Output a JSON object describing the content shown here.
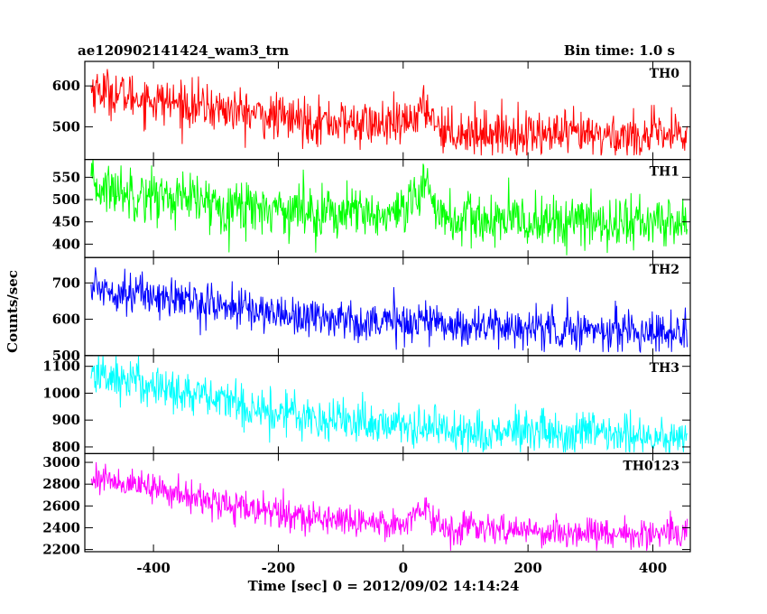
{
  "header": {
    "left_title": "ae120902141424_wam3_trn",
    "right_title": "Bin time: 1.0 s"
  },
  "chart_data": {
    "type": "line",
    "xlabel": "Time [sec] 0 = 2012/09/02 14:14:24",
    "ylabel": "Counts/sec",
    "xlim": [
      -510,
      460
    ],
    "x_ticks": [
      -400,
      -200,
      0,
      200,
      400
    ],
    "x_step": 1.0,
    "x_range": [
      -500,
      455
    ],
    "grid": false,
    "panels": [
      {
        "name": "TH0",
        "color": "#ff0000",
        "ylim": [
          420,
          660
        ],
        "y_ticks": [
          500,
          600
        ],
        "trend_points": [
          [
            -500,
            595
          ],
          [
            -450,
            578
          ],
          [
            -400,
            565
          ],
          [
            -300,
            545
          ],
          [
            -200,
            522
          ],
          [
            -100,
            510
          ],
          [
            0,
            502
          ],
          [
            20,
            530
          ],
          [
            40,
            548
          ],
          [
            55,
            505
          ],
          [
            70,
            488
          ],
          [
            200,
            483
          ],
          [
            300,
            478
          ],
          [
            455,
            478
          ]
        ],
        "noise": 28,
        "y_range": [
          430,
          660
        ]
      },
      {
        "name": "TH1",
        "color": "#00ff00",
        "ylim": [
          370,
          590
        ],
        "y_ticks": [
          400,
          450,
          500,
          550
        ],
        "trend_points": [
          [
            -500,
            530
          ],
          [
            -400,
            510
          ],
          [
            -300,
            490
          ],
          [
            -200,
            480
          ],
          [
            -100,
            470
          ],
          [
            0,
            460
          ],
          [
            25,
            505
          ],
          [
            40,
            545
          ],
          [
            55,
            475
          ],
          [
            70,
            455
          ],
          [
            200,
            450
          ],
          [
            455,
            448
          ]
        ],
        "noise": 30,
        "y_range": [
          375,
          595
        ]
      },
      {
        "name": "TH2",
        "color": "#0000ff",
        "ylim": [
          500,
          770
        ],
        "y_ticks": [
          500,
          600,
          700
        ],
        "trend_points": [
          [
            -500,
            690
          ],
          [
            -400,
            665
          ],
          [
            -300,
            640
          ],
          [
            -200,
            615
          ],
          [
            -100,
            600
          ],
          [
            0,
            590
          ],
          [
            40,
            600
          ],
          [
            70,
            585
          ],
          [
            200,
            575
          ],
          [
            455,
            565
          ]
        ],
        "noise": 28,
        "y_range": [
          510,
          775
        ]
      },
      {
        "name": "TH3",
        "color": "#00ffff",
        "ylim": [
          775,
          1140
        ],
        "y_ticks": [
          800,
          900,
          1000,
          1100
        ],
        "trend_points": [
          [
            -500,
            1075
          ],
          [
            -400,
            1030
          ],
          [
            -300,
            975
          ],
          [
            -200,
            930
          ],
          [
            -100,
            900
          ],
          [
            0,
            880
          ],
          [
            100,
            860
          ],
          [
            200,
            850
          ],
          [
            300,
            845
          ],
          [
            455,
            840
          ]
        ],
        "noise": 42,
        "y_range": [
          780,
          1145
        ]
      },
      {
        "name": "TH0123",
        "color": "#ff00ff",
        "ylim": [
          2180,
          3080
        ],
        "y_ticks": [
          2200,
          2400,
          2600,
          2800,
          3000
        ],
        "trend_points": [
          [
            -500,
            2870
          ],
          [
            -400,
            2760
          ],
          [
            -300,
            2630
          ],
          [
            -200,
            2530
          ],
          [
            -100,
            2470
          ],
          [
            0,
            2440
          ],
          [
            20,
            2520
          ],
          [
            35,
            2600
          ],
          [
            50,
            2470
          ],
          [
            70,
            2400
          ],
          [
            200,
            2370
          ],
          [
            300,
            2350
          ],
          [
            455,
            2340
          ]
        ],
        "noise": 70,
        "y_range": [
          2190,
          3090
        ]
      }
    ]
  }
}
